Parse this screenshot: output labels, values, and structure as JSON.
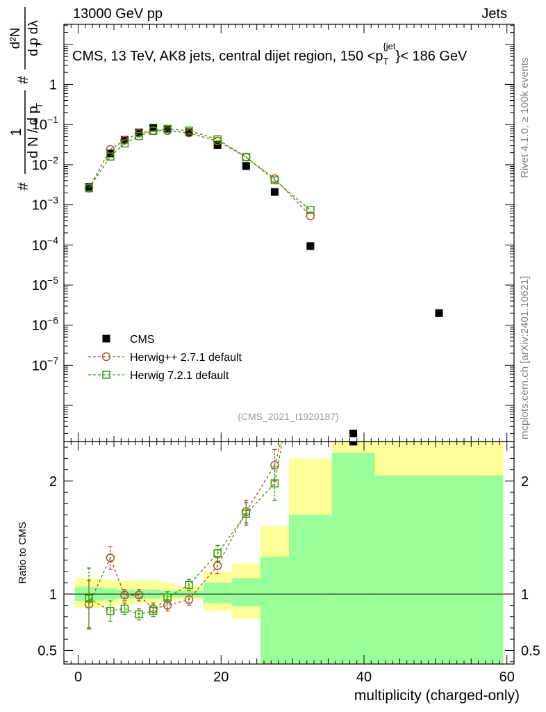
{
  "header": {
    "left": "13000 GeV pp",
    "right": "Jets"
  },
  "side_labels": {
    "rivet": "Rivet 4.1.0, ≥ 100k events",
    "mcplots": "mcplots.cern.ch [arXiv:2401.10621]"
  },
  "chart_data": {
    "type": "scatter",
    "title": "CMS, 13 TeV, AK8 jets, central dijet region, 150 <p",
    "title_sub": "T",
    "title_sup": "{jet",
    "title_sup2": "}",
    "title_end": "< 186 GeV",
    "analysis_tag": "(CMS_2021_I1920187)",
    "ylabel_main": "# 1/(# dN / d p_T) d²N/(d p_T dλ)",
    "ylabel_ratio": "Ratio to CMS",
    "xlabel": "multiplicity (charged-only)",
    "xlim": [
      -2,
      61
    ],
    "ylim_main_log10": [
      -8.9,
      1.5
    ],
    "ylim_ratio": [
      0.38,
      2.35
    ],
    "x_ticks": [
      0,
      20,
      40,
      60
    ],
    "x_tick_labels": [
      "0",
      "20",
      "40",
      "60"
    ],
    "y_ticks_main": [
      {
        "exp": 0,
        "label": "1"
      },
      {
        "exp": -1,
        "label": "10",
        "sup": "−1"
      },
      {
        "exp": -2,
        "label": "10",
        "sup": "−2"
      },
      {
        "exp": -3,
        "label": "10",
        "sup": "−3"
      },
      {
        "exp": -4,
        "label": "10",
        "sup": "−4"
      },
      {
        "exp": -5,
        "label": "10",
        "sup": "−5"
      },
      {
        "exp": -6,
        "label": "10",
        "sup": "−6"
      },
      {
        "exp": -7,
        "label": "10",
        "sup": "−7"
      }
    ],
    "y_ticks_ratio": [
      {
        "value": 2,
        "label": "2"
      },
      {
        "value": 1,
        "label": "1"
      },
      {
        "value": 0.5,
        "label": "0.5"
      }
    ],
    "legend": {
      "placement": "lower-left",
      "entries": [
        {
          "label": "CMS",
          "series": "cms"
        },
        {
          "label": "Herwig++ 2.7.1 default",
          "series": "hwpp"
        },
        {
          "label": "Herwig 7.2.1 default",
          "series": "hw7"
        }
      ]
    },
    "colors": {
      "cms": "#000000",
      "hwpp": "#a0522d",
      "hw7": "#339900",
      "band_inner": "#99ff99",
      "band_outer": "#ffff99"
    },
    "series": [
      {
        "name": "CMS",
        "id": "cms",
        "marker": "square-filled",
        "x": [
          1.5,
          4.5,
          6.5,
          8.5,
          10.5,
          12.5,
          15.5,
          19.5,
          23.5,
          27.5,
          32.5,
          38.5,
          50.5
        ],
        "values": [
          0.0028,
          0.019,
          0.042,
          0.064,
          0.083,
          0.077,
          0.065,
          0.031,
          0.0093,
          0.0021,
          9.4e-05,
          2e-09,
          2e-06
        ]
      },
      {
        "name": "Herwig++ 2.7.1 default",
        "id": "hwpp",
        "marker": "circle-open",
        "x": [
          1.5,
          4.5,
          6.5,
          8.5,
          10.5,
          12.5,
          15.5,
          19.5,
          23.5,
          27.5,
          32.5
        ],
        "values": [
          0.0026,
          0.024,
          0.041,
          0.061,
          0.071,
          0.071,
          0.062,
          0.039,
          0.0155,
          0.0045,
          0.00053
        ]
      },
      {
        "name": "Herwig 7.2.1 default",
        "id": "hw7",
        "marker": "square-open",
        "x": [
          1.5,
          4.5,
          6.5,
          8.5,
          10.5,
          12.5,
          15.5,
          19.5,
          23.5,
          27.5,
          32.5
        ],
        "values": [
          0.0026,
          0.016,
          0.034,
          0.052,
          0.07,
          0.078,
          0.071,
          0.043,
          0.0155,
          0.0041,
          0.00074
        ]
      }
    ],
    "ratio_series": [
      {
        "id": "hwpp",
        "x": [
          1.5,
          4.5,
          6.5,
          8.5,
          10.5,
          12.5,
          15.5,
          19.5,
          23.5,
          27.5,
          29
        ],
        "values": [
          0.91,
          1.32,
          0.99,
          0.99,
          0.87,
          0.9,
          0.95,
          1.25,
          1.73,
          2.14,
          2.5
        ],
        "err": [
          0.21,
          0.1,
          0.05,
          0.05,
          0.05,
          0.05,
          0.05,
          0.07,
          0.1,
          0.14,
          0.0
        ]
      },
      {
        "id": "hw7",
        "x": [
          1.5,
          4.5,
          6.5,
          8.5,
          10.5,
          12.5,
          15.5,
          19.5,
          23.5,
          27.5,
          29
        ],
        "values": [
          0.96,
          0.85,
          0.87,
          0.82,
          0.85,
          0.97,
          1.08,
          1.36,
          1.71,
          1.98,
          2.5
        ],
        "err": [
          0.27,
          0.09,
          0.05,
          0.05,
          0.05,
          0.05,
          0.05,
          0.07,
          0.1,
          0.15,
          0.0
        ]
      }
    ],
    "cms_ratio_extra": [
      {
        "x": 38.5,
        "value": 2.35
      }
    ],
    "uncertainty_bands": [
      {
        "x0": -0.5,
        "x1": 3.5,
        "inner": [
          0.94,
          1.06
        ],
        "outer": [
          0.88,
          1.14
        ]
      },
      {
        "x0": 3.5,
        "x1": 5.5,
        "inner": [
          0.95,
          1.05
        ],
        "outer": [
          0.9,
          1.12
        ]
      },
      {
        "x0": 5.5,
        "x1": 7.5,
        "inner": [
          0.96,
          1.04
        ],
        "outer": [
          0.91,
          1.12
        ]
      },
      {
        "x0": 7.5,
        "x1": 9.5,
        "inner": [
          0.96,
          1.04
        ],
        "outer": [
          0.92,
          1.12
        ]
      },
      {
        "x0": 9.5,
        "x1": 11.5,
        "inner": [
          0.96,
          1.04
        ],
        "outer": [
          0.92,
          1.12
        ]
      },
      {
        "x0": 11.5,
        "x1": 13.5,
        "inner": [
          0.97,
          1.03
        ],
        "outer": [
          0.94,
          1.1
        ]
      },
      {
        "x0": 13.5,
        "x1": 17.5,
        "inner": [
          0.97,
          1.03
        ],
        "outer": [
          0.95,
          1.07
        ]
      },
      {
        "x0": 17.5,
        "x1": 21.5,
        "inner": [
          0.92,
          1.1
        ],
        "outer": [
          0.85,
          1.2
        ]
      },
      {
        "x0": 21.5,
        "x1": 25.5,
        "inner": [
          0.89,
          1.14
        ],
        "outer": [
          0.78,
          1.27
        ]
      },
      {
        "x0": 25.5,
        "x1": 29.5,
        "inner": [
          0.25,
          1.33
        ],
        "outer": [
          0.2,
          1.6
        ]
      },
      {
        "x0": 29.5,
        "x1": 35.5,
        "inner": [
          0.2,
          1.7
        ],
        "outer": [
          0.2,
          2.2
        ]
      },
      {
        "x0": 35.5,
        "x1": 41.5,
        "inner": [
          0.2,
          2.25
        ],
        "outer": [
          0.2,
          2.4
        ]
      },
      {
        "x0": 41.5,
        "x1": 59.5,
        "inner": [
          0.2,
          2.05
        ],
        "outer": [
          0.2,
          2.4
        ]
      }
    ]
  }
}
